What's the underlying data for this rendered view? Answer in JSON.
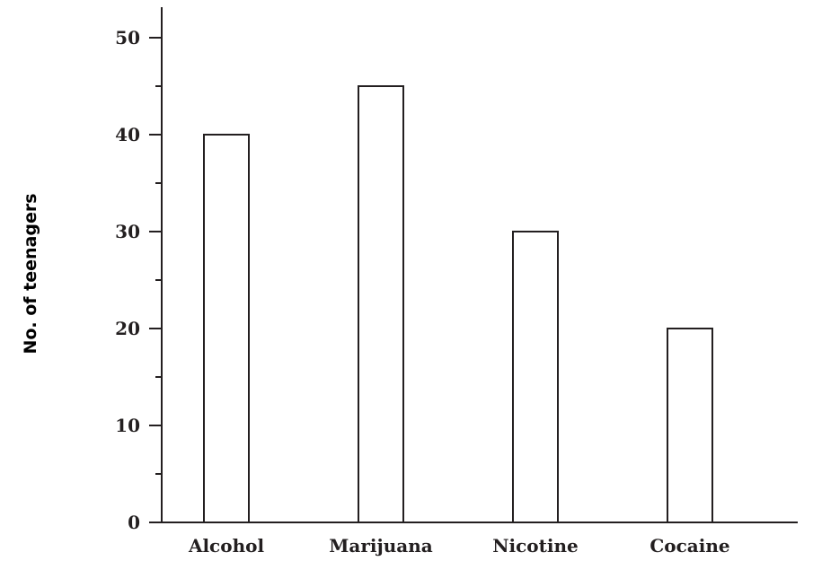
{
  "chart_data": {
    "type": "bar",
    "categories": [
      "Alcohol",
      "Marijuana",
      "Nicotine",
      "Cocaine"
    ],
    "values": [
      40,
      45,
      30,
      20
    ],
    "title": "",
    "xlabel": "",
    "ylabel": "No. of teenagers",
    "ylim": [
      0,
      52
    ],
    "y_ticks": [
      0,
      10,
      20,
      30,
      40,
      50
    ],
    "y_minor_ticks": [
      5,
      15,
      25,
      35,
      45
    ],
    "grid": false,
    "legend": "none",
    "bar_fill": "#ffffff",
    "bar_stroke": "#231f20"
  }
}
